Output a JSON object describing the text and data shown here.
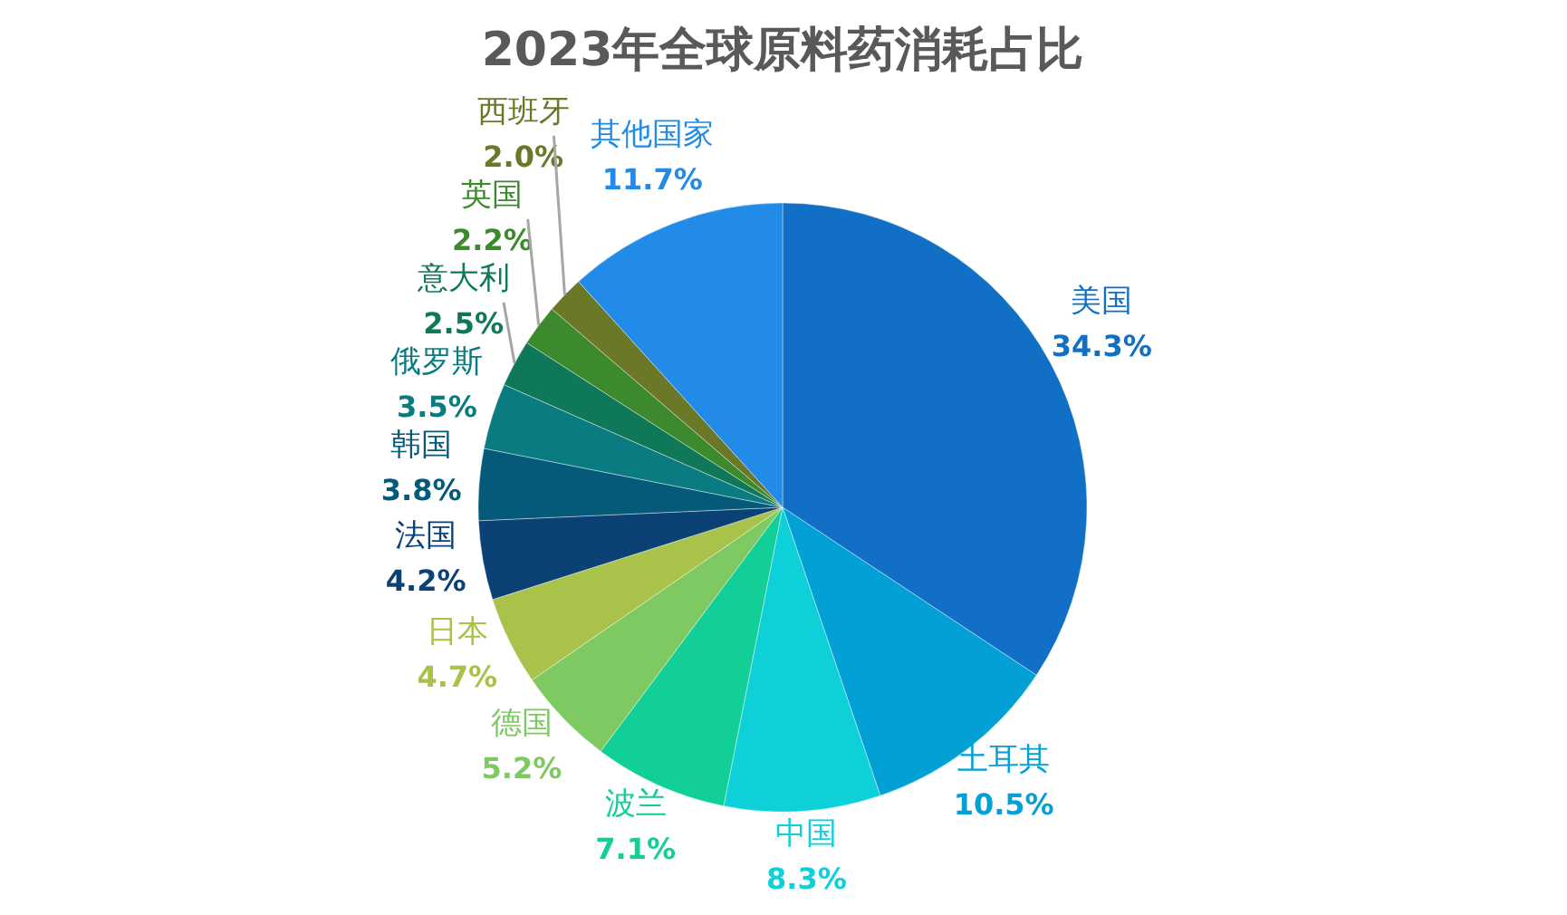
{
  "chart_data": {
    "type": "pie",
    "title": "2023年全球原料药消耗占比",
    "categories": [
      "美国",
      "土耳其",
      "中国",
      "波兰",
      "德国",
      "日本",
      "法国",
      "韩国",
      "俄罗斯",
      "意大利",
      "英国",
      "西班牙",
      "其他国家"
    ],
    "values": [
      34.3,
      10.5,
      8.3,
      7.1,
      5.2,
      4.7,
      4.2,
      3.8,
      3.5,
      2.5,
      2.2,
      2.0,
      11.7
    ],
    "value_labels": [
      "34.3%",
      "10.5%",
      "8.3%",
      "7.1%",
      "5.2%",
      "4.7%",
      "4.2%",
      "3.8%",
      "3.5%",
      "2.5%",
      "2.2%",
      "2.0%",
      "11.7%"
    ],
    "colors": [
      "#1170c6",
      "#03a0d6",
      "#0dd0d8",
      "#12cf98",
      "#7ec962",
      "#a8c24a",
      "#0c4175",
      "#055a7a",
      "#0a7b80",
      "#0f7858",
      "#3d8a2e",
      "#6a7828",
      "#228be8"
    ]
  }
}
